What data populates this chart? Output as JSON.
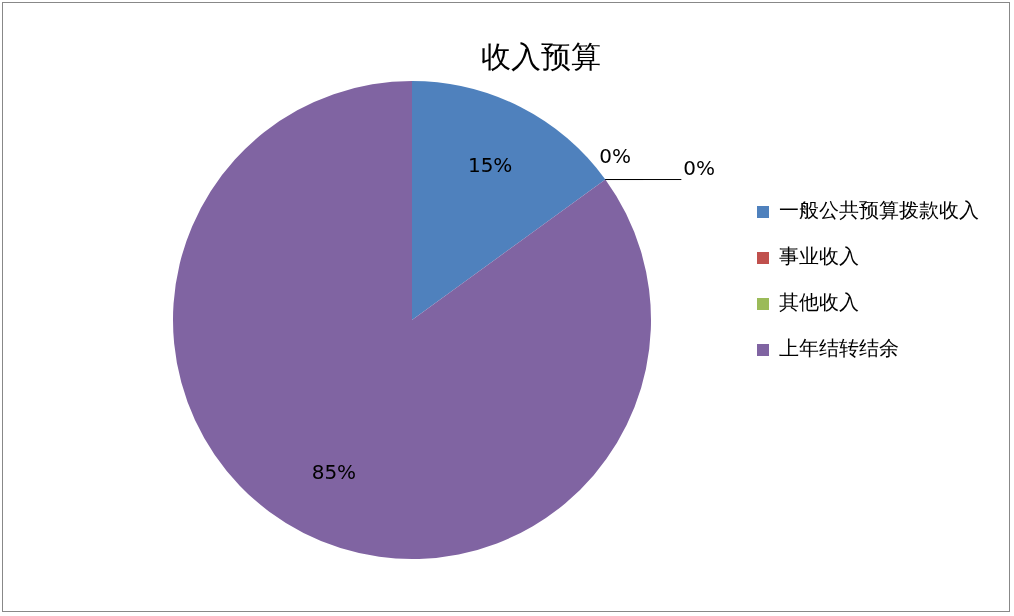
{
  "chart_data": {
    "type": "pie",
    "title": "收入预算",
    "categories": [
      "一般公共预算拨款收入",
      "事业收入",
      "其他收入",
      "上年结转结余"
    ],
    "values": [
      15,
      0,
      0,
      85
    ],
    "colors": [
      "#4f81bd",
      "#c0504d",
      "#9bbb59",
      "#8064a2"
    ],
    "value_labels": [
      "15%",
      "0%",
      "0%",
      "85%"
    ],
    "legend": "right"
  }
}
